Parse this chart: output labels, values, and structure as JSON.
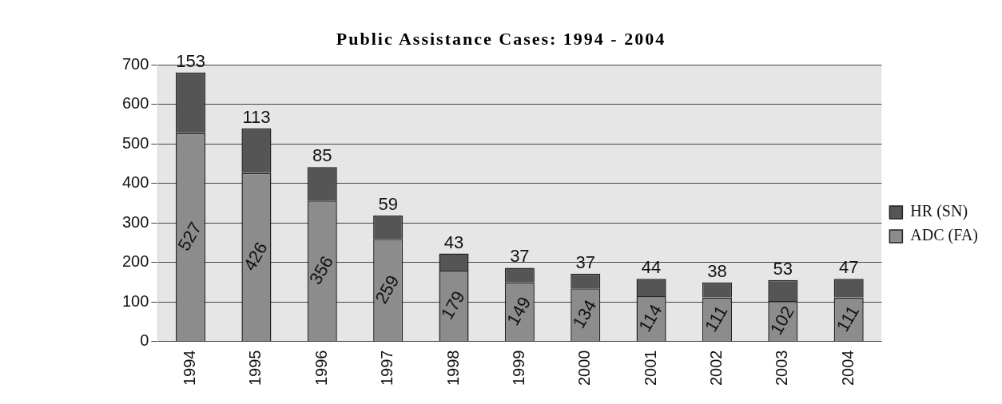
{
  "chart_data": {
    "type": "bar",
    "title": "Public Assistance Cases: 1994 - 2004",
    "stacked": true,
    "categories": [
      "1994",
      "1995",
      "1996",
      "1997",
      "1998",
      "1999",
      "2000",
      "2001",
      "2002",
      "2003",
      "2004"
    ],
    "series": [
      {
        "name": "ADC (FA)",
        "color": "#8c8c8c",
        "values": [
          527,
          426,
          356,
          259,
          179,
          149,
          134,
          114,
          111,
          102,
          111
        ]
      },
      {
        "name": "HR (SN)",
        "color": "#555555",
        "values": [
          153,
          113,
          85,
          59,
          43,
          37,
          37,
          44,
          38,
          53,
          47
        ]
      }
    ],
    "ylim": [
      0,
      700
    ],
    "yticks": [
      0,
      100,
      200,
      300,
      400,
      500,
      600,
      700
    ],
    "grid": "y",
    "legend": "right",
    "data_labels": true
  }
}
